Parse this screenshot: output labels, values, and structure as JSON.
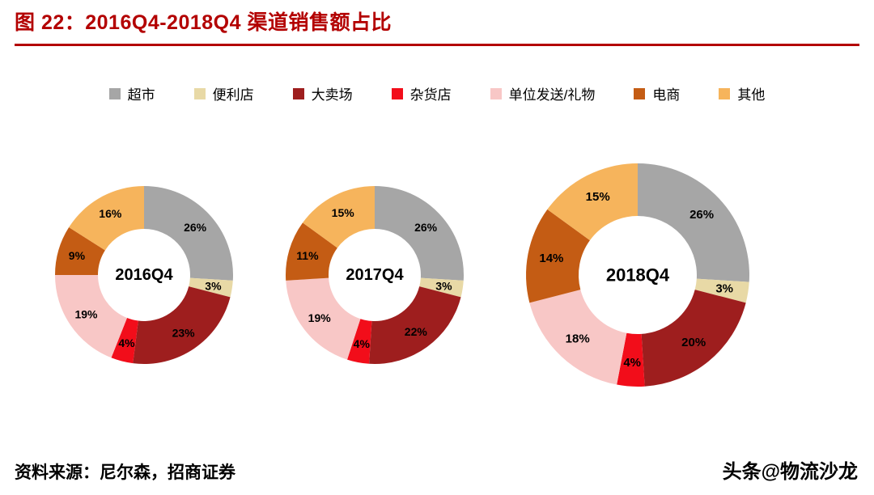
{
  "title": "图 22：2016Q4-2018Q4 渠道销售额占比",
  "accent_color": "#b30000",
  "legend": {
    "items": [
      {
        "label": "超市",
        "color": "#a6a6a6"
      },
      {
        "label": "便利店",
        "color": "#e8d9a6"
      },
      {
        "label": "大卖场",
        "color": "#9e1e1e"
      },
      {
        "label": "杂货店",
        "color": "#f20d1a"
      },
      {
        "label": "单位发送/礼物",
        "color": "#f8c7c6"
      },
      {
        "label": "电商",
        "color": "#c45c14"
      },
      {
        "label": "其他",
        "color": "#f6b45c"
      }
    ]
  },
  "chart_data": [
    {
      "type": "pie",
      "donut": true,
      "title": "2016Q4",
      "categories": [
        "超市",
        "便利店",
        "大卖场",
        "杂货店",
        "单位发送/礼物",
        "电商",
        "其他"
      ],
      "values": [
        26,
        3,
        23,
        4,
        19,
        9,
        16
      ],
      "unit": "%",
      "legend_position": "top"
    },
    {
      "type": "pie",
      "donut": true,
      "title": "2017Q4",
      "categories": [
        "超市",
        "便利店",
        "大卖场",
        "杂货店",
        "单位发送/礼物",
        "电商",
        "其他"
      ],
      "values": [
        26,
        3,
        22,
        4,
        19,
        11,
        15
      ],
      "unit": "%",
      "legend_position": "top"
    },
    {
      "type": "pie",
      "donut": true,
      "title": "2018Q4",
      "categories": [
        "超市",
        "便利店",
        "大卖场",
        "杂货店",
        "单位发送/礼物",
        "电商",
        "其他"
      ],
      "values": [
        26,
        3,
        20,
        4,
        18,
        14,
        15
      ],
      "unit": "%",
      "legend_position": "top"
    }
  ],
  "footer": {
    "source": "资料来源：尼尔森，招商证券",
    "watermark": "头条@物流沙龙"
  }
}
